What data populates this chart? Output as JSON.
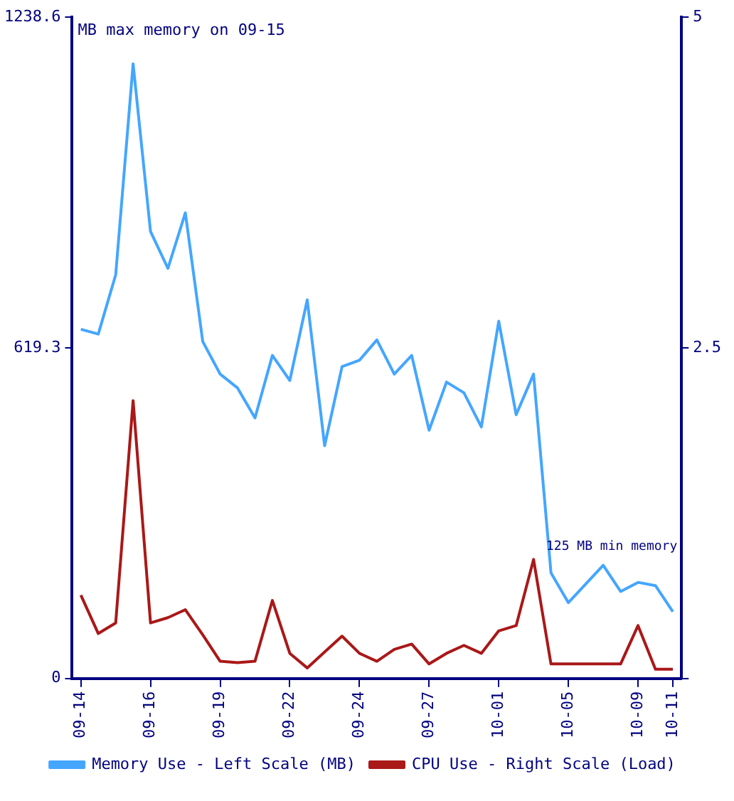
{
  "chart_data": {
    "type": "line",
    "categories": [
      "09-14",
      null,
      null,
      null,
      "09-16",
      null,
      null,
      null,
      "09-19",
      null,
      null,
      null,
      "09-22",
      null,
      null,
      null,
      "09-24",
      null,
      null,
      null,
      "09-27",
      null,
      null,
      null,
      "10-01",
      null,
      null,
      null,
      "10-05",
      null,
      null,
      null,
      "10-09",
      null,
      "10-11"
    ],
    "series": [
      {
        "name": "Memory Use - Left Scale (MB)",
        "color": "#44a6ff",
        "values": [
          654,
          645,
          756,
          1151,
          837,
          768,
          872,
          631,
          570,
          544,
          488,
          605,
          558,
          709,
          436,
          584,
          596,
          634,
          570,
          605,
          465,
          555,
          535,
          471,
          669,
          494,
          570,
          198,
          142,
          177,
          212,
          163,
          180,
          174,
          125
        ]
      },
      {
        "name": "CPU Use - Right Scale (Load)",
        "color": "#aa1818",
        "axis": "y2",
        "values": [
          0.63,
          0.34,
          0.42,
          2.1,
          0.42,
          0.46,
          0.52,
          0.33,
          0.13,
          0.12,
          0.13,
          0.59,
          0.19,
          0.08,
          0.2,
          0.32,
          0.19,
          0.13,
          0.22,
          0.26,
          0.11,
          0.19,
          0.25,
          0.19,
          0.36,
          0.4,
          0.9,
          0.11,
          0.11,
          0.11,
          0.11,
          0.11,
          0.4,
          0.07,
          0.07
        ]
      }
    ],
    "ylim": [
      0,
      1238.6
    ],
    "yticks": [
      0,
      619.3,
      1238.6
    ],
    "y2lim": [
      0,
      5
    ],
    "y2ticks": [
      {
        "value": 0,
        "label": null
      },
      2.5,
      5
    ],
    "annotations": [
      "MB max memory on 09-15",
      "125 MB min memory"
    ],
    "legend": "bottom",
    "marker": "none",
    "line_style": "solid"
  }
}
